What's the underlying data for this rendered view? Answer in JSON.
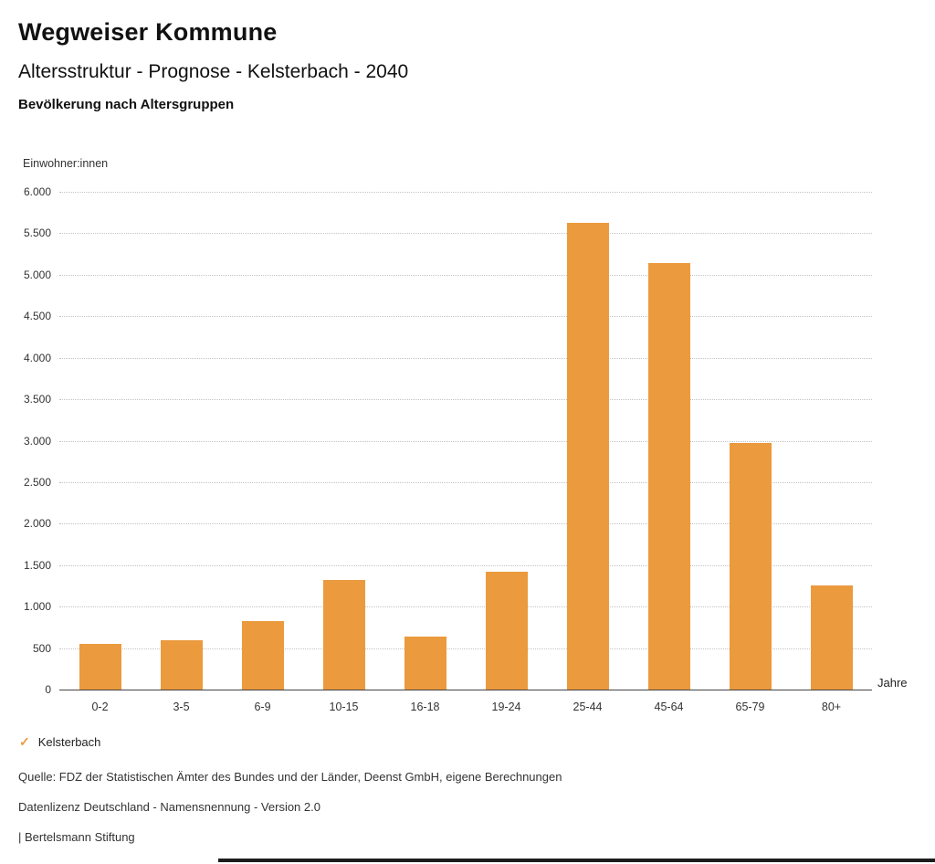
{
  "header": {
    "app_title": "Wegweiser Kommune",
    "page_subtitle": "Altersstruktur - Prognose - Kelsterbach - 2040",
    "chart_heading": "Bevölkerung nach Altersgruppen"
  },
  "legend": {
    "checkmark_icon": "✓",
    "label": "Kelsterbach"
  },
  "footer": {
    "source_line": "Quelle: FDZ der Statistischen Ämter des Bundes und der Länder, Deenst GmbH, eigene Berechnungen",
    "license_line": "Datenlizenz Deutschland - Namensnennung - Version 2.0",
    "brand_line": "| Bertelsmann Stiftung"
  },
  "chart_data": {
    "type": "bar",
    "title": "Bevölkerung nach Altersgruppen",
    "series_name": "Kelsterbach",
    "categories": [
      "0-2",
      "3-5",
      "6-9",
      "10-15",
      "16-18",
      "19-24",
      "25-44",
      "45-64",
      "65-79",
      "80+"
    ],
    "values": [
      550,
      590,
      830,
      1320,
      640,
      1420,
      5630,
      5140,
      2970,
      1250
    ],
    "xlabel": "Jahre",
    "ylabel": "Einwohner:innen",
    "ylim": [
      0,
      6000
    ],
    "ytick_step": 500,
    "ytick_labels": [
      "0",
      "500",
      "1.000",
      "1.500",
      "2.000",
      "2.500",
      "3.000",
      "3.500",
      "4.000",
      "4.500",
      "5.000",
      "5.500",
      "6.000"
    ],
    "bar_color": "#EB9A3E",
    "grid": "horizontal-dotted",
    "legend_position": "bottom-left"
  }
}
